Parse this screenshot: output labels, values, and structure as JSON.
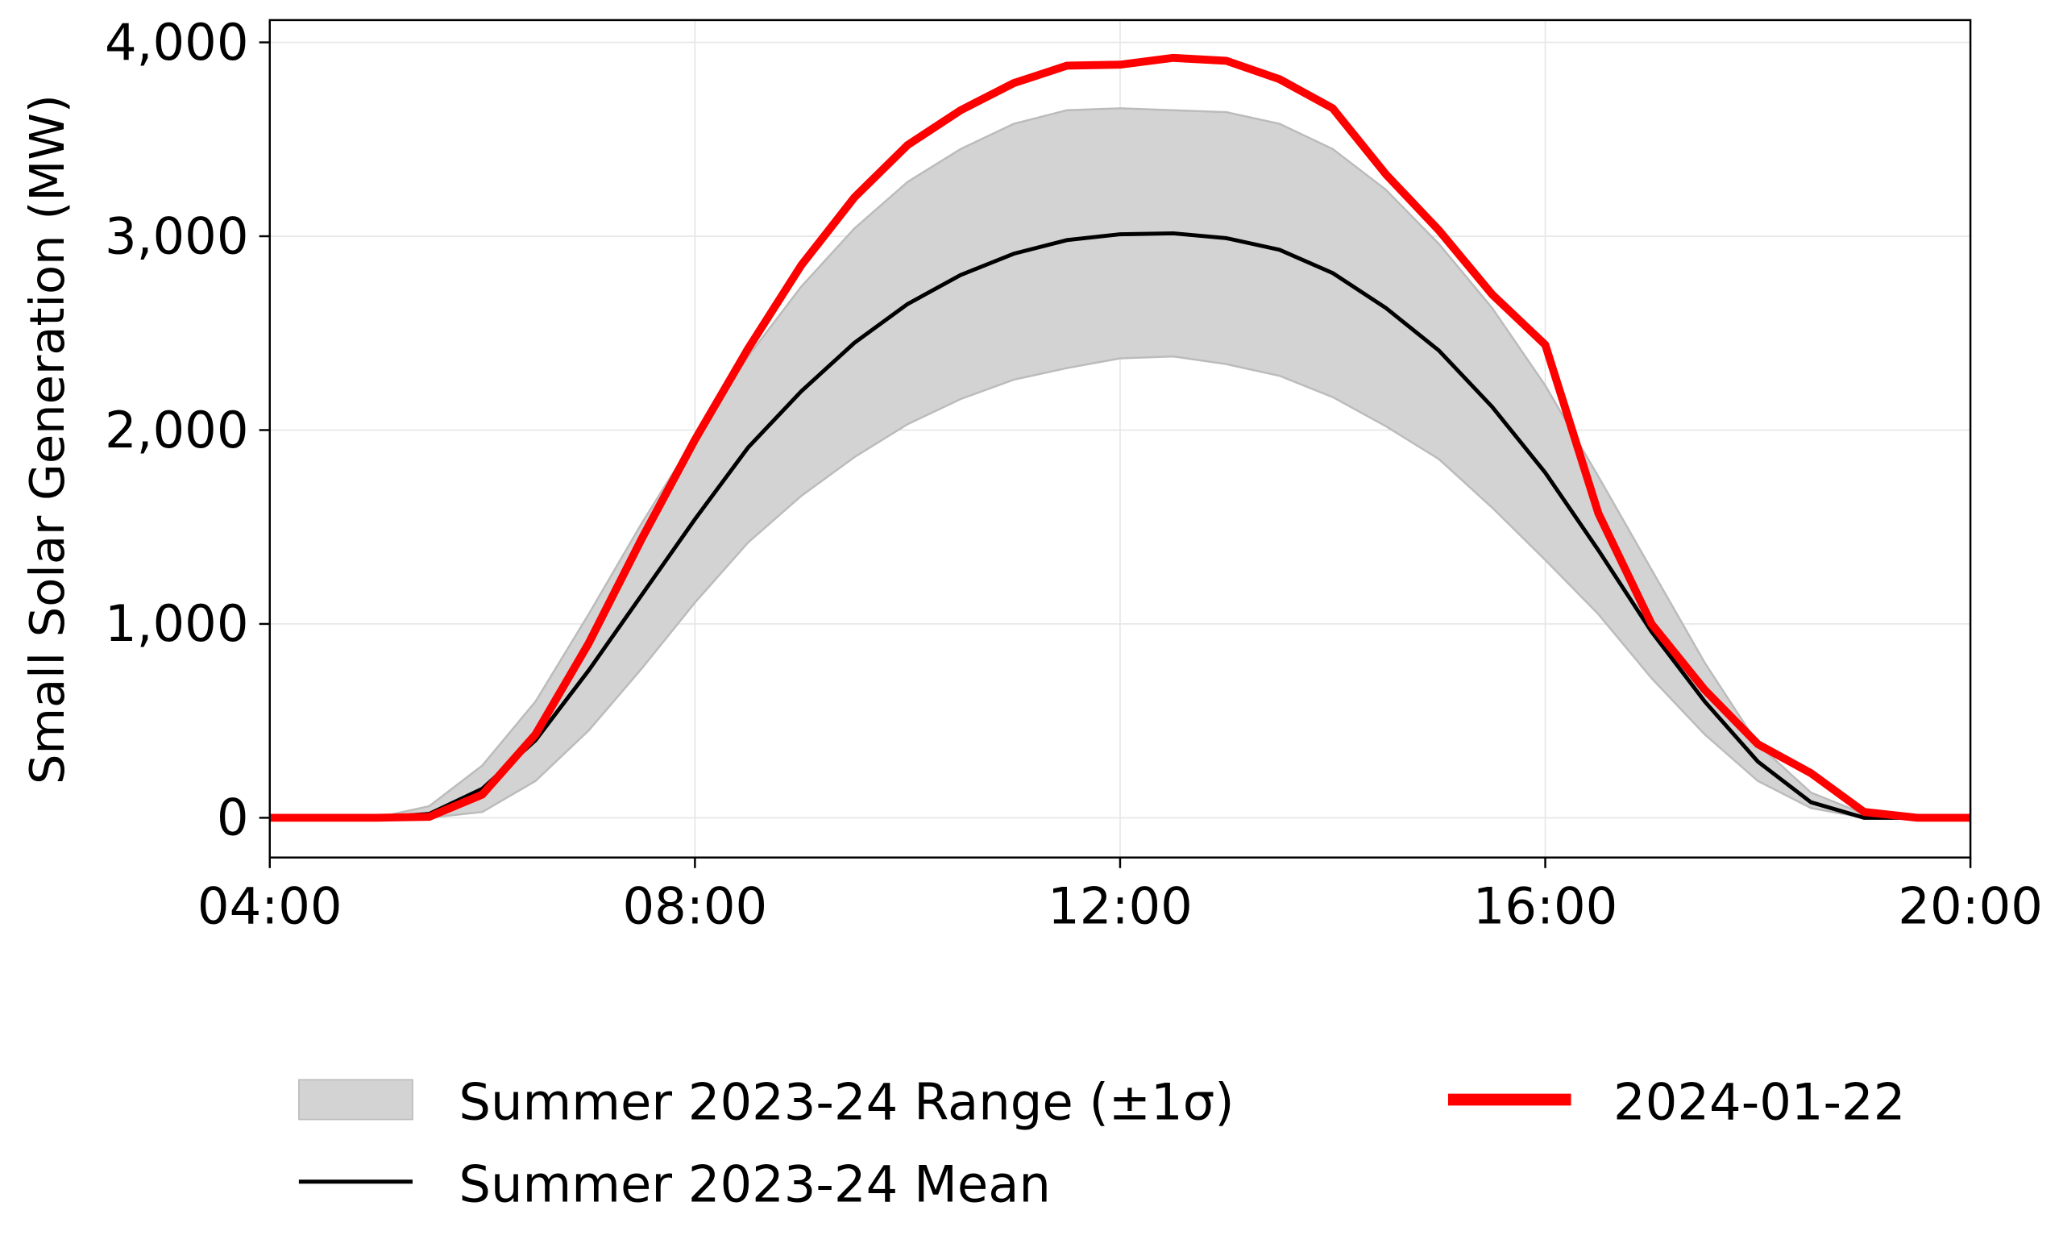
{
  "chart_data": {
    "type": "line",
    "title": "",
    "xlabel": "",
    "ylabel": "Small Solar Generation (MW)",
    "xlim": [
      4,
      20
    ],
    "ylim": [
      -205,
      4115
    ],
    "grid": true,
    "x_ticks": [
      4,
      8,
      12,
      16,
      20
    ],
    "x_tick_labels": [
      "04:00",
      "08:00",
      "12:00",
      "16:00",
      "20:00"
    ],
    "y_ticks": [
      0,
      1000,
      2000,
      3000,
      4000
    ],
    "y_tick_labels": [
      "0",
      "1,000",
      "2,000",
      "3,000",
      "4,000"
    ],
    "x": [
      4,
      4.5,
      5,
      5.5,
      6,
      6.5,
      7,
      7.5,
      8,
      8.5,
      9,
      9.5,
      10,
      10.5,
      11,
      11.5,
      12,
      12.5,
      13,
      13.5,
      14,
      14.5,
      15,
      15.5,
      16,
      16.5,
      17,
      17.5,
      18,
      18.5,
      19,
      19.5,
      20
    ],
    "band": {
      "name": "Summer 2023-24 Range (±1σ)",
      "color": "#d3d3d3",
      "upper": [
        0,
        0,
        0,
        60,
        270,
        600,
        1050,
        1520,
        1960,
        2380,
        2740,
        3040,
        3280,
        3450,
        3580,
        3650,
        3660,
        3650,
        3640,
        3580,
        3450,
        3240,
        2960,
        2630,
        2230,
        1760,
        1280,
        800,
        380,
        130,
        20,
        0,
        0
      ],
      "lower": [
        0,
        0,
        0,
        0,
        30,
        190,
        450,
        770,
        1110,
        1420,
        1660,
        1860,
        2030,
        2160,
        2260,
        2320,
        2370,
        2380,
        2340,
        2280,
        2170,
        2020,
        1850,
        1600,
        1330,
        1050,
        720,
        430,
        190,
        50,
        0,
        0,
        0
      ]
    },
    "series": [
      {
        "name": "Summer 2023-24 Mean",
        "color": "#000000",
        "values": [
          0,
          0,
          0,
          20,
          150,
          400,
          760,
          1150,
          1540,
          1910,
          2200,
          2450,
          2650,
          2800,
          2910,
          2980,
          3010,
          3015,
          2990,
          2930,
          2810,
          2630,
          2410,
          2120,
          1780,
          1380,
          960,
          600,
          290,
          80,
          0,
          0,
          0
        ]
      },
      {
        "name": "2024-01-22",
        "color": "#ff0000",
        "values": [
          0,
          0,
          0,
          5,
          120,
          430,
          900,
          1440,
          1950,
          2420,
          2850,
          3200,
          3470,
          3650,
          3790,
          3880,
          3885,
          3920,
          3905,
          3810,
          3660,
          3320,
          3030,
          2700,
          2440,
          1570,
          1000,
          660,
          380,
          230,
          30,
          0,
          0
        ]
      }
    ],
    "legend_position": "bottom"
  }
}
